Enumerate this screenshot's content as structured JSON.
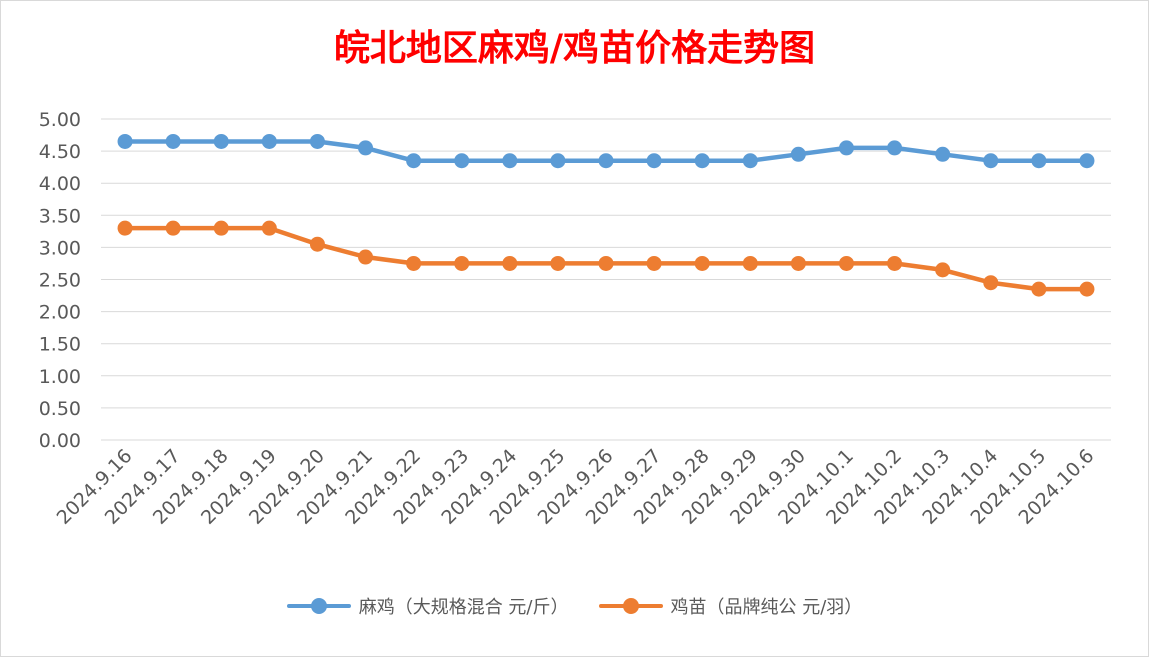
{
  "chart_data": {
    "type": "line",
    "title": "皖北地区麻鸡/鸡苗价格走势图",
    "categories": [
      "2024.9.16",
      "2024.9.17",
      "2024.9.18",
      "2024.9.19",
      "2024.9.20",
      "2024.9.21",
      "2024.9.22",
      "2024.9.23",
      "2024.9.24",
      "2024.9.25",
      "2024.9.26",
      "2024.9.27",
      "2024.9.28",
      "2024.9.29",
      "2024.9.30",
      "2024.10.1",
      "2024.10.2",
      "2024.10.3",
      "2024.10.4",
      "2024.10.5",
      "2024.10.6"
    ],
    "series": [
      {
        "name": "麻鸡（大规格混合 元/斤）",
        "color": "#5b9bd5",
        "values": [
          4.65,
          4.65,
          4.65,
          4.65,
          4.65,
          4.55,
          4.35,
          4.35,
          4.35,
          4.35,
          4.35,
          4.35,
          4.35,
          4.35,
          4.45,
          4.55,
          4.55,
          4.45,
          4.35,
          4.35,
          4.35
        ]
      },
      {
        "name": "鸡苗（品牌纯公 元/羽）",
        "color": "#ed7d31",
        "values": [
          3.3,
          3.3,
          3.3,
          3.3,
          3.05,
          2.85,
          2.75,
          2.75,
          2.75,
          2.75,
          2.75,
          2.75,
          2.75,
          2.75,
          2.75,
          2.75,
          2.75,
          2.65,
          2.45,
          2.35,
          2.35
        ]
      }
    ],
    "yticks": [
      "0.00",
      "0.50",
      "1.00",
      "1.50",
      "2.00",
      "2.50",
      "3.00",
      "3.50",
      "4.00",
      "4.50",
      "5.00"
    ],
    "ylim": [
      0,
      5
    ],
    "grid": true,
    "legend_position": "bottom",
    "title_color": "#ff0000"
  }
}
